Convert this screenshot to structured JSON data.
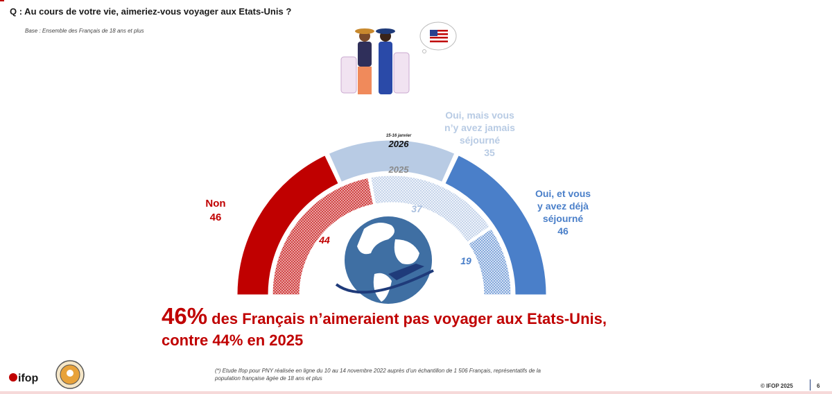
{
  "header": {
    "question": "Q : Au cours de votre vie, aimeriez-vous voyager aux Etats-Unis ?",
    "base": "Base : Ensemble des Français de 18 ans et plus"
  },
  "chart_data": {
    "type": "donut-semicircle",
    "title": "Q : Au cours de votre vie, aimeriez-vous voyager aux Etats-Unis ?",
    "categories": [
      "Non",
      "Oui, mais vous n'y avez jamais séjourné",
      "Oui, et vous y avez déjà séjourné"
    ],
    "series": [
      {
        "name": "2026",
        "values": [
          46,
          35,
          46
        ],
        "ring": "outer",
        "note": "15-16 janvier"
      },
      {
        "name": "2025",
        "values": [
          44,
          37,
          19
        ],
        "ring": "inner"
      }
    ],
    "colors": [
      "#c00000",
      "#b8cbe4",
      "#4a7fc9"
    ],
    "outer_labels": {
      "non": [
        "Non",
        "46"
      ],
      "jamais": [
        "Oui, mais vous",
        "n’y avez jamais",
        "séjourné",
        "35"
      ],
      "deja": [
        "Oui, et vous",
        "y avez déjà",
        "séjourné",
        "46"
      ]
    },
    "inner_labels": [
      "44",
      "37",
      "19"
    ],
    "year_labels": {
      "outer": "2026",
      "outer_note": "15-16 janvier",
      "inner": "2025"
    }
  },
  "headline": {
    "big": "46%",
    "line1": " des Français n’aimeraient pas voyager aux Etats-Unis,",
    "line2": "contre 44% en 2025"
  },
  "footer": {
    "note_line1": "(*) Etude Ifop pour PNY réalisée en ligne du 10 au 14 novembre 2022 auprès d’un échantillon de 1 506 Français, représentatifs de la",
    "note_line2": "population française âgée de 18 ans et plus",
    "copyright": "© IFOP 2025",
    "page": "6",
    "logo_text": "ifop"
  }
}
